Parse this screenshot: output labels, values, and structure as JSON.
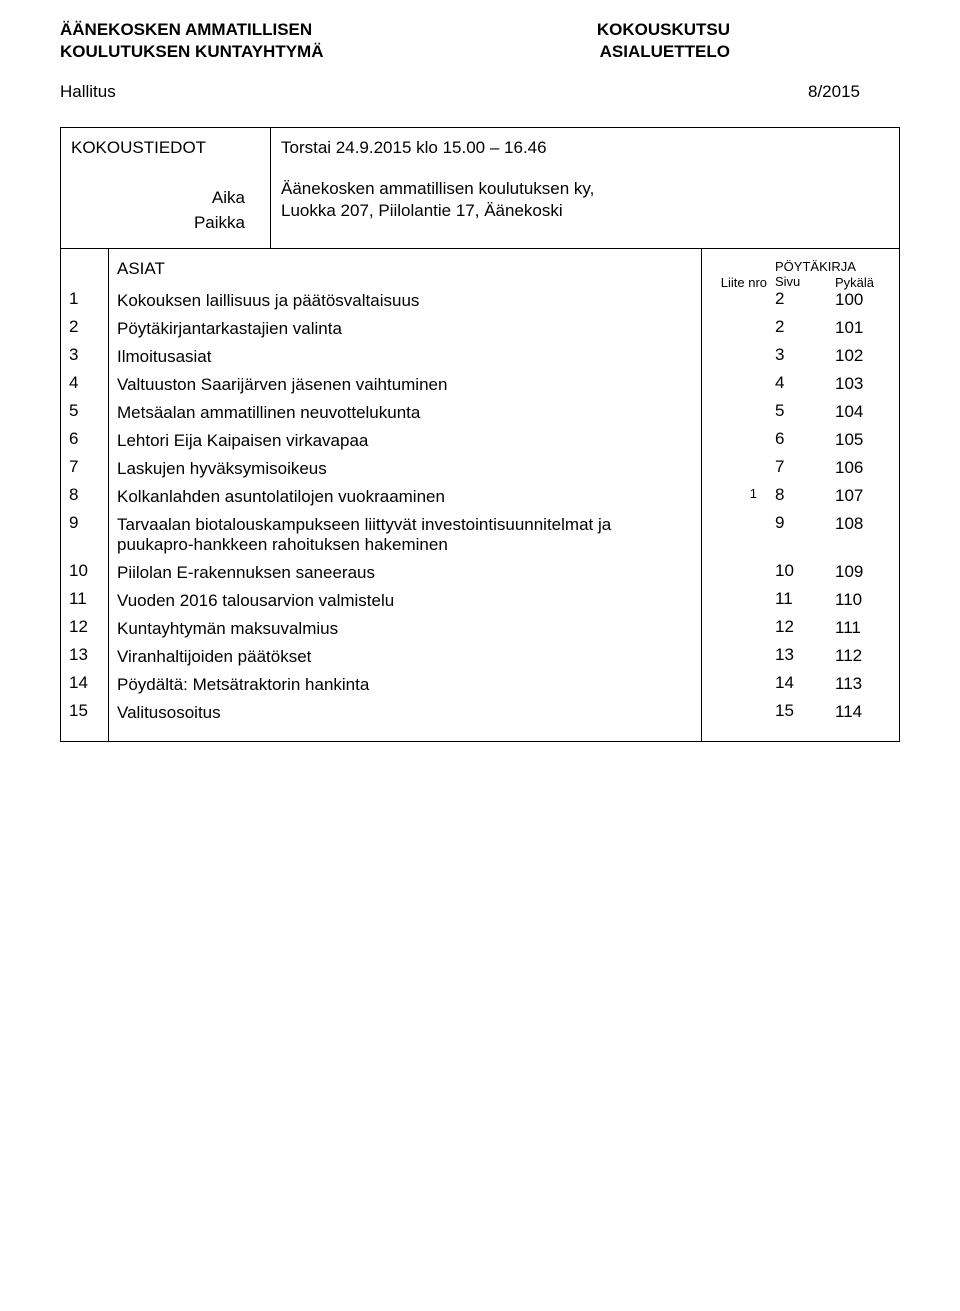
{
  "header": {
    "org_line1": "ÄÄNEKOSKEN AMMATILLISEN",
    "org_line2": "KOULUTUKSEN KUNTAYHTYMÄ",
    "doc_type1": "KOKOUSKUTSU",
    "doc_type2": "ASIALUETTELO",
    "hallitus": "Hallitus",
    "meeting_number": "8/2015"
  },
  "info": {
    "kokoustiedot_label": "KOKOUSTIEDOT",
    "aika_label": "Aika",
    "paikka_label": "Paikka",
    "datetime": "Torstai 24.9.2015 klo 15.00 – 16.46",
    "location_line1": "Äänekosken ammatillisen koulutuksen ky,",
    "location_line2": "Luokka 207, Piilolantie 17, Äänekoski"
  },
  "table_headers": {
    "asiat": "ASIAT",
    "liite_nro": "Liite nro",
    "poytakirja": "PÖYTÄKIRJA",
    "sivu": "Sivu",
    "pykala": "Pykälä"
  },
  "items": [
    {
      "num": "1",
      "text": "Kokouksen laillisuus ja päätösvaltaisuus",
      "liite": "",
      "sivu": "2",
      "pykala": "100"
    },
    {
      "num": "2",
      "text": "Pöytäkirjantarkastajien valinta",
      "liite": "",
      "sivu": "2",
      "pykala": "101"
    },
    {
      "num": "3",
      "text": "Ilmoitusasiat",
      "liite": "",
      "sivu": "3",
      "pykala": "102"
    },
    {
      "num": "4",
      "text": "Valtuuston Saarijärven jäsenen vaihtuminen",
      "liite": "",
      "sivu": "4",
      "pykala": "103"
    },
    {
      "num": "5",
      "text": "Metsäalan ammatillinen neuvottelukunta",
      "liite": "",
      "sivu": "5",
      "pykala": "104"
    },
    {
      "num": "6",
      "text": "Lehtori Eija Kaipaisen virkavapaa",
      "liite": "",
      "sivu": "6",
      "pykala": "105"
    },
    {
      "num": "7",
      "text": "Laskujen hyväksymisoikeus",
      "liite": "",
      "sivu": "7",
      "pykala": "106"
    },
    {
      "num": "8",
      "text": "Kolkanlahden asuntolatilojen vuokraaminen",
      "liite": "1",
      "sivu": "8",
      "pykala": "107"
    },
    {
      "num": "9",
      "text": "Tarvaalan biotalouskampukseen liittyvät investointisuunnitelmat ja puukapro-hankkeen rahoituksen hakeminen",
      "liite": "",
      "sivu": "9",
      "pykala": "108"
    },
    {
      "num": "10",
      "text": "Piilolan E-rakennuksen saneeraus",
      "liite": "",
      "sivu": "10",
      "pykala": "109"
    },
    {
      "num": "11",
      "text": "Vuoden 2016 talousarvion valmistelu",
      "liite": "",
      "sivu": "11",
      "pykala": "110"
    },
    {
      "num": "12",
      "text": "Kuntayhtymän maksuvalmius",
      "liite": "",
      "sivu": "12",
      "pykala": "111"
    },
    {
      "num": "13",
      "text": "Viranhaltijoiden päätökset",
      "liite": "",
      "sivu": "13",
      "pykala": "112"
    },
    {
      "num": "14",
      "text": "Pöydältä: Metsätraktorin hankinta",
      "liite": "",
      "sivu": "14",
      "pykala": "113"
    },
    {
      "num": "15",
      "text": "Valitusosoitus",
      "liite": "",
      "sivu": "15",
      "pykala": "114"
    }
  ]
}
